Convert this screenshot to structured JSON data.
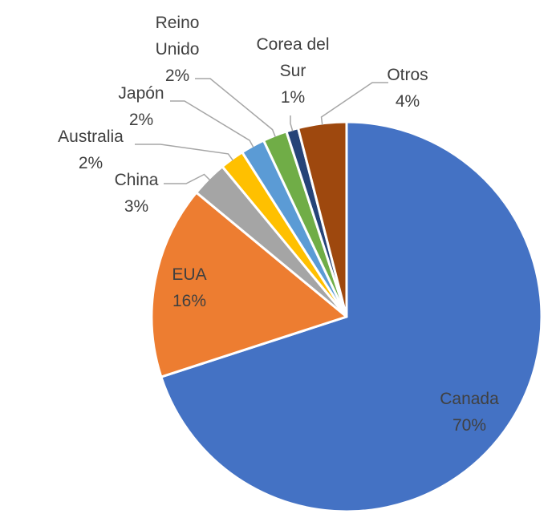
{
  "chart_data": {
    "type": "pie",
    "title": "",
    "start_angle_deg": 0,
    "direction": "clockwise",
    "slices": [
      {
        "label": "Canada",
        "value": 70,
        "value_label": "70%",
        "color": "#4472C4",
        "label_style": "inside"
      },
      {
        "label": "EUA",
        "value": 16,
        "value_label": "16%",
        "color": "#ED7D31",
        "label_style": "inside"
      },
      {
        "label": "China",
        "value": 3,
        "value_label": "3%",
        "color": "#A5A5A5",
        "label_style": "leader"
      },
      {
        "label": "Australia",
        "value": 2,
        "value_label": "2%",
        "color": "#FFC000",
        "label_style": "leader"
      },
      {
        "label": "Japón",
        "value": 2,
        "value_label": "2%",
        "color": "#5B9BD5",
        "label_style": "leader"
      },
      {
        "label": "Reino Unido",
        "value": 2,
        "value_label": "2%",
        "color": "#70AD47",
        "label_style": "leader"
      },
      {
        "label": "Corea del Sur",
        "value": 1,
        "value_label": "1%",
        "color": "#264478",
        "label_style": "leader"
      },
      {
        "label": "Otros",
        "value": 4,
        "value_label": "4%",
        "color": "#9E480E",
        "label_style": "leader"
      }
    ]
  }
}
